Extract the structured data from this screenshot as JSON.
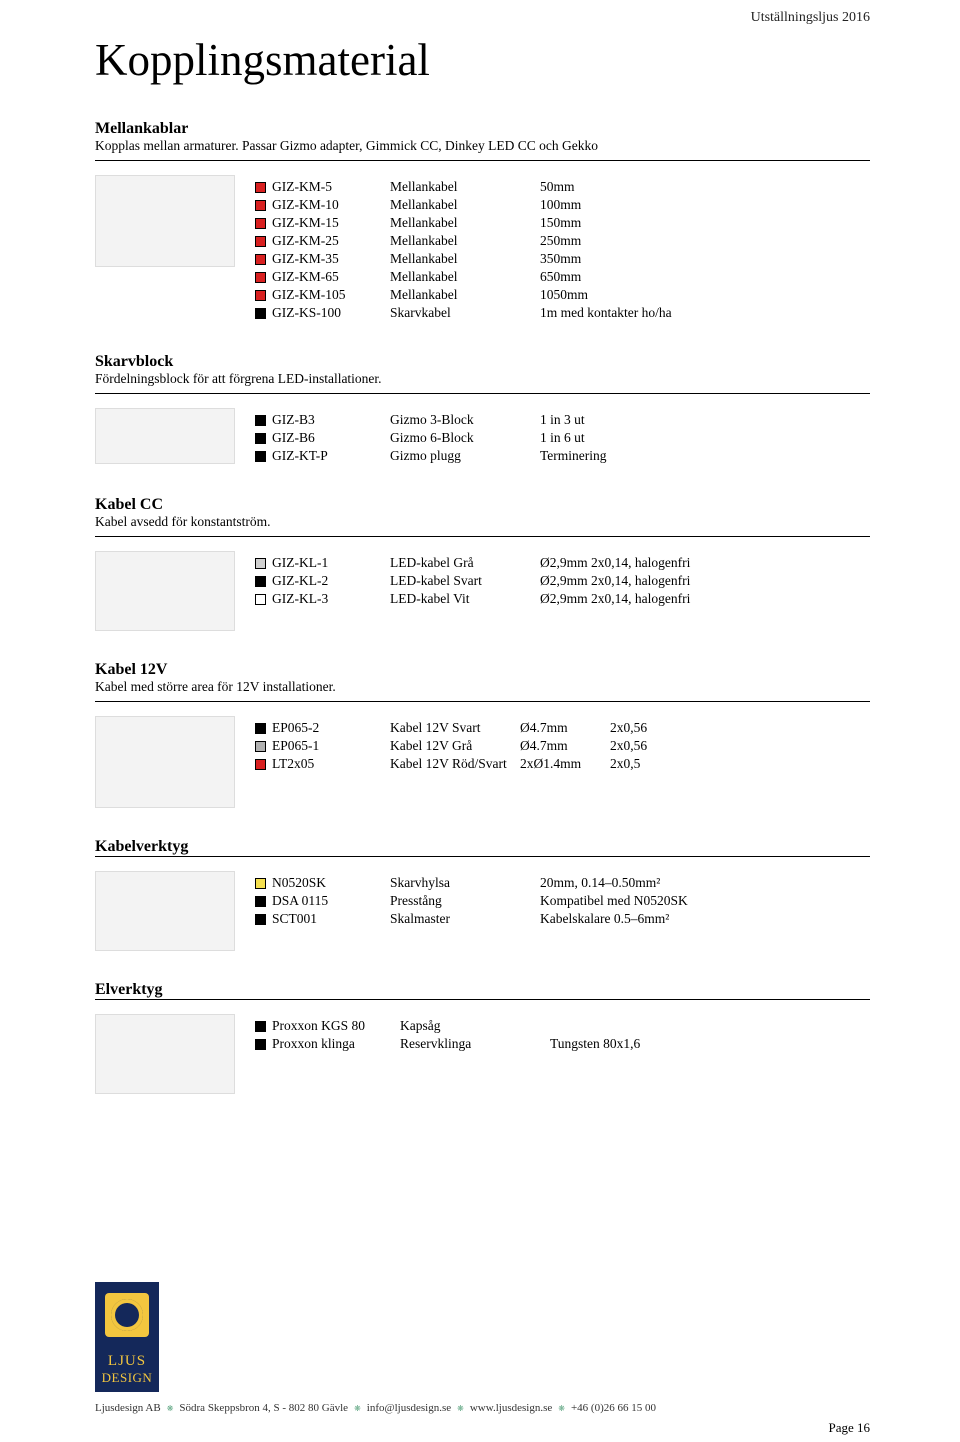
{
  "header_right": "Utställningsljus 2016",
  "main_title": "Kopplingsmaterial",
  "sections": {
    "mellankablar": {
      "title": "Mellankablar",
      "desc": "Kopplas mellan armaturer. Passar Gizmo adapter, Gimmick CC, Dinkey LED CC och Gekko",
      "items": [
        {
          "swatch": "#d82020",
          "a": "GIZ-KM-5",
          "b": "Mellankabel",
          "c": "50mm"
        },
        {
          "swatch": "#d82020",
          "a": "GIZ-KM-10",
          "b": "Mellankabel",
          "c": "100mm"
        },
        {
          "swatch": "#d82020",
          "a": "GIZ-KM-15",
          "b": "Mellankabel",
          "c": "150mm"
        },
        {
          "swatch": "#d82020",
          "a": "GIZ-KM-25",
          "b": "Mellankabel",
          "c": "250mm"
        },
        {
          "swatch": "#d82020",
          "a": "GIZ-KM-35",
          "b": "Mellankabel",
          "c": "350mm"
        },
        {
          "swatch": "#d82020",
          "a": "GIZ-KM-65",
          "b": "Mellankabel",
          "c": "650mm"
        },
        {
          "swatch": "#d82020",
          "a": "GIZ-KM-105",
          "b": "Mellankabel",
          "c": "1050mm"
        },
        {
          "swatch": "#000000",
          "a": "GIZ-KS-100",
          "b": "Skarvkabel",
          "c": "1m med kontakter ho/ha"
        }
      ]
    },
    "skarvblock": {
      "title": "Skarvblock",
      "desc": "Fördelningsblock för att förgrena LED-installationer.",
      "items": [
        {
          "swatch": "#000000",
          "a": "GIZ-B3",
          "b": "Gizmo 3-Block",
          "c": "1 in 3 ut"
        },
        {
          "swatch": "#000000",
          "a": "GIZ-B6",
          "b": "Gizmo 6-Block",
          "c": "1 in 6 ut"
        },
        {
          "swatch": "#000000",
          "a": "GIZ-KT-P",
          "b": "Gizmo plugg",
          "c": "Terminering"
        }
      ]
    },
    "kabelcc": {
      "title": "Kabel CC",
      "desc": "Kabel avsedd för konstantström.",
      "items": [
        {
          "swatch": "#d0d0d0",
          "a": "GIZ-KL-1",
          "b": "LED-kabel Grå",
          "c": "Ø2,9mm 2x0,14, halogenfri"
        },
        {
          "swatch": "#000000",
          "a": "GIZ-KL-2",
          "b": "LED-kabel Svart",
          "c": "Ø2,9mm 2x0,14, halogenfri"
        },
        {
          "swatch": "#ffffff",
          "a": "GIZ-KL-3",
          "b": "LED-kabel Vit",
          "c": "Ø2,9mm 2x0,14, halogenfri"
        }
      ]
    },
    "kabel12v": {
      "title": "Kabel 12V",
      "desc": "Kabel med större area för 12V installationer.",
      "items": [
        {
          "swatch": "#000000",
          "a": "EP065-2",
          "b": "Kabel 12V Svart",
          "c": "Ø4.7mm",
          "d": "2x0,56"
        },
        {
          "swatch": "#b0b0b0",
          "a": "EP065-1",
          "b": "Kabel 12V Grå",
          "c": "Ø4.7mm",
          "d": "2x0,56"
        },
        {
          "swatch": "#d82020",
          "a": "LT2x05",
          "b": "Kabel 12V Röd/Svart",
          "c": "2xØ1.4mm",
          "d": "2x0,5"
        }
      ]
    },
    "kabelverktyg": {
      "title": "Kabelverktyg",
      "items": [
        {
          "swatch": "#f5e050",
          "a": "N0520SK",
          "b": "Skarvhylsa",
          "c": "20mm, 0.14–0.50mm²"
        },
        {
          "swatch": "#000000",
          "a": "DSA 0115",
          "b": "Presstång",
          "c": "Kompatibel med N0520SK"
        },
        {
          "swatch": "#000000",
          "a": "SCT001",
          "b": "Skalmaster",
          "c": "Kabelskalare 0.5–6mm²"
        }
      ]
    },
    "elverktyg": {
      "title": "Elverktyg",
      "items": [
        {
          "swatch": "#000000",
          "a": "Proxxon KGS 80",
          "b": "Kapsåg",
          "c": ""
        },
        {
          "swatch": "#000000",
          "a": "Proxxon klinga",
          "b": "Reservklinga",
          "c": "Tungsten 80x1,6"
        }
      ]
    }
  },
  "footer": {
    "logo1": "LJUS",
    "logo2": "DESIGN",
    "parts": [
      "Ljusdesign AB",
      "Södra Skeppsbron 4,  S - 802 80 Gävle",
      "info@ljusdesign.se",
      "www.ljusdesign.se",
      "+46 (0)26 66 15 00"
    ]
  },
  "page_num": "Page 16"
}
